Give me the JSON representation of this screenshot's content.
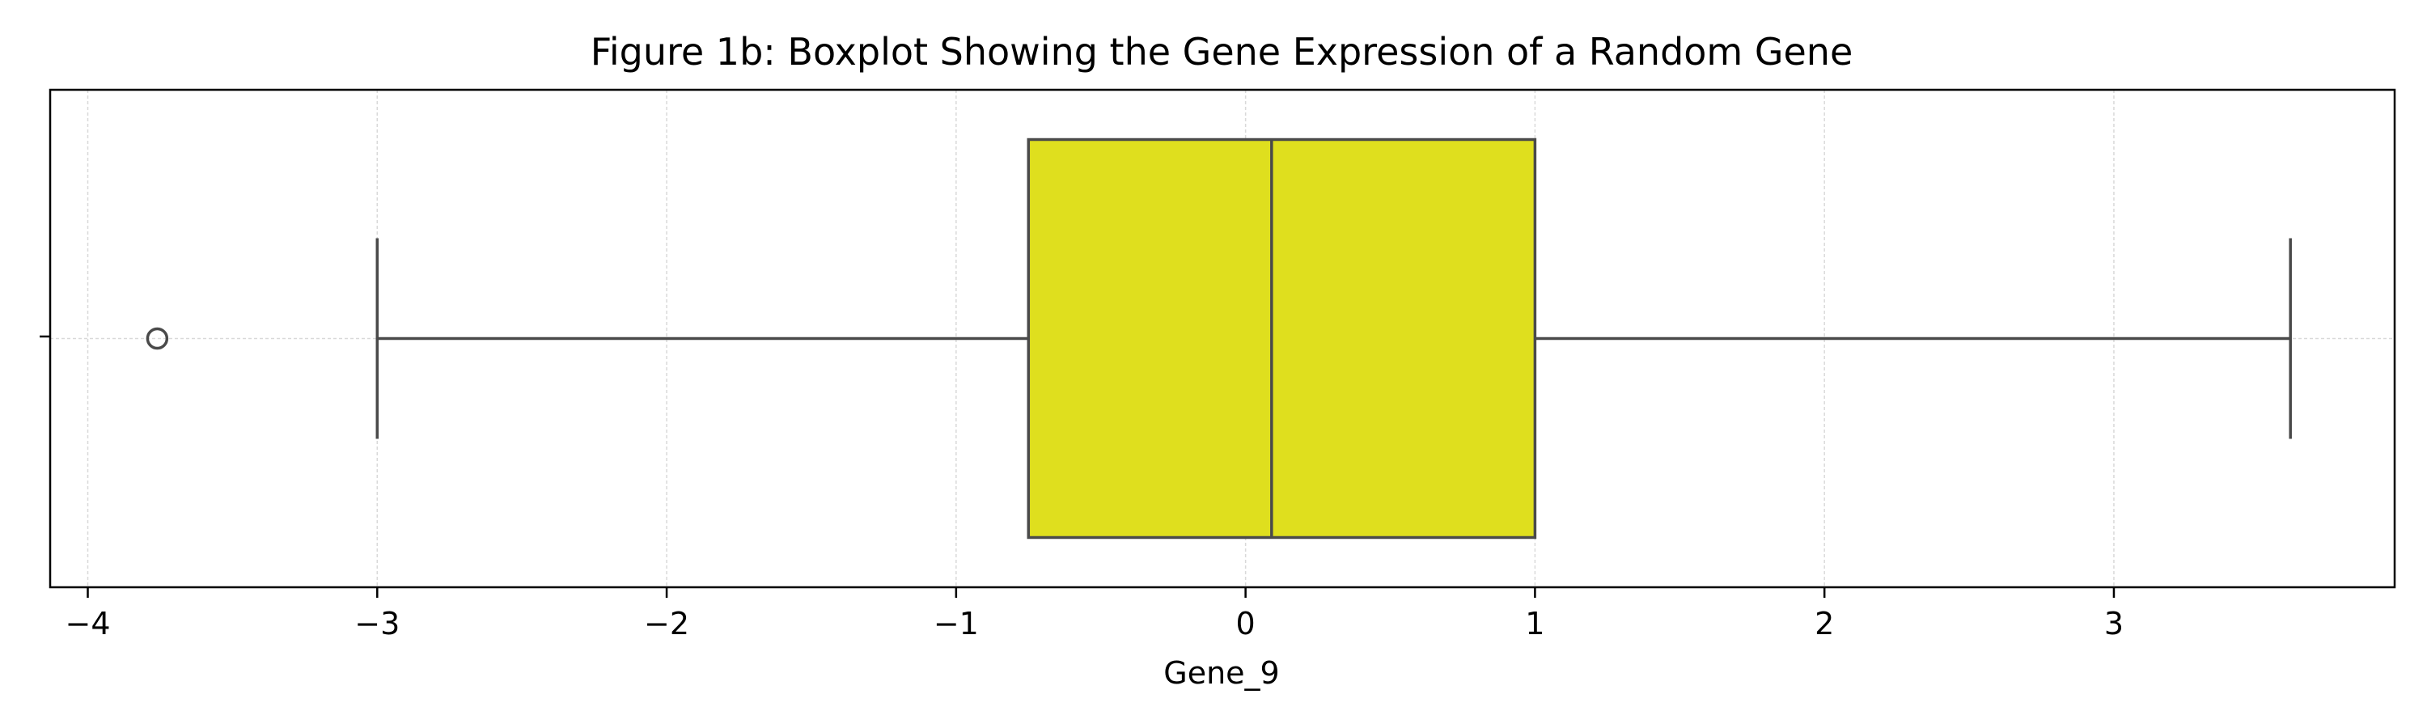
{
  "chart_data": {
    "type": "boxplot",
    "orientation": "horizontal",
    "title": "Figure 1b: Boxplot Showing the Gene Expression of a Random Gene",
    "xlabel": "Gene_9",
    "ylabel": "",
    "xlim": [
      -4.13,
      3.97
    ],
    "x_ticks": [
      -4,
      -3,
      -2,
      -1,
      0,
      1,
      2,
      3
    ],
    "x_tick_labels": [
      "−4",
      "−3",
      "−2",
      "−1",
      "0",
      "1",
      "2",
      "3"
    ],
    "grid": true,
    "series": [
      {
        "whisker_low": -3.0,
        "q1": -0.75,
        "median": 0.09,
        "q3": 1.0,
        "whisker_high": 3.61,
        "outliers": [
          -3.76
        ]
      }
    ],
    "colors": {
      "box_fill": "#dfdf1e",
      "line": "#4a4a4a",
      "grid": "#d9d9d9",
      "frame": "#000000"
    }
  }
}
